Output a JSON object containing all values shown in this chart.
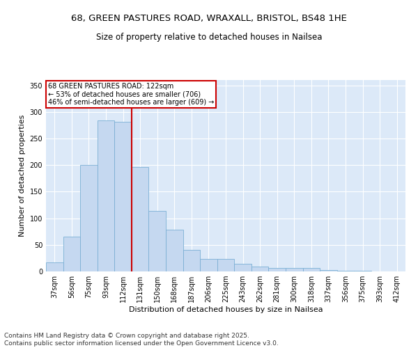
{
  "title_line1": "68, GREEN PASTURES ROAD, WRAXALL, BRISTOL, BS48 1HE",
  "title_line2": "Size of property relative to detached houses in Nailsea",
  "xlabel": "Distribution of detached houses by size in Nailsea",
  "ylabel": "Number of detached properties",
  "categories": [
    "37sqm",
    "56sqm",
    "75sqm",
    "93sqm",
    "112sqm",
    "131sqm",
    "150sqm",
    "168sqm",
    "187sqm",
    "206sqm",
    "225sqm",
    "243sqm",
    "262sqm",
    "281sqm",
    "300sqm",
    "318sqm",
    "337sqm",
    "356sqm",
    "375sqm",
    "393sqm",
    "412sqm"
  ],
  "values": [
    17,
    65,
    200,
    284,
    282,
    197,
    114,
    79,
    40,
    23,
    23,
    15,
    9,
    7,
    6,
    6,
    2,
    1,
    1,
    0,
    0
  ],
  "bar_color": "#c5d8f0",
  "bar_edge_color": "#7bafd4",
  "annotation_line1": "68 GREEN PASTURES ROAD: 122sqm",
  "annotation_line2": "← 53% of detached houses are smaller (706)",
  "annotation_line3": "46% of semi-detached houses are larger (609) →",
  "annotation_box_color": "#ffffff",
  "annotation_box_edge_color": "#cc0000",
  "vline_color": "#cc0000",
  "vline_x_index": 4,
  "ylim": [
    0,
    360
  ],
  "yticks": [
    0,
    50,
    100,
    150,
    200,
    250,
    300,
    350
  ],
  "background_color": "#dce9f8",
  "footer_line1": "Contains HM Land Registry data © Crown copyright and database right 2025.",
  "footer_line2": "Contains public sector information licensed under the Open Government Licence v3.0.",
  "title_fontsize": 9.5,
  "subtitle_fontsize": 8.5,
  "axis_label_fontsize": 8,
  "tick_fontsize": 7,
  "annotation_fontsize": 7,
  "footer_fontsize": 6.5
}
